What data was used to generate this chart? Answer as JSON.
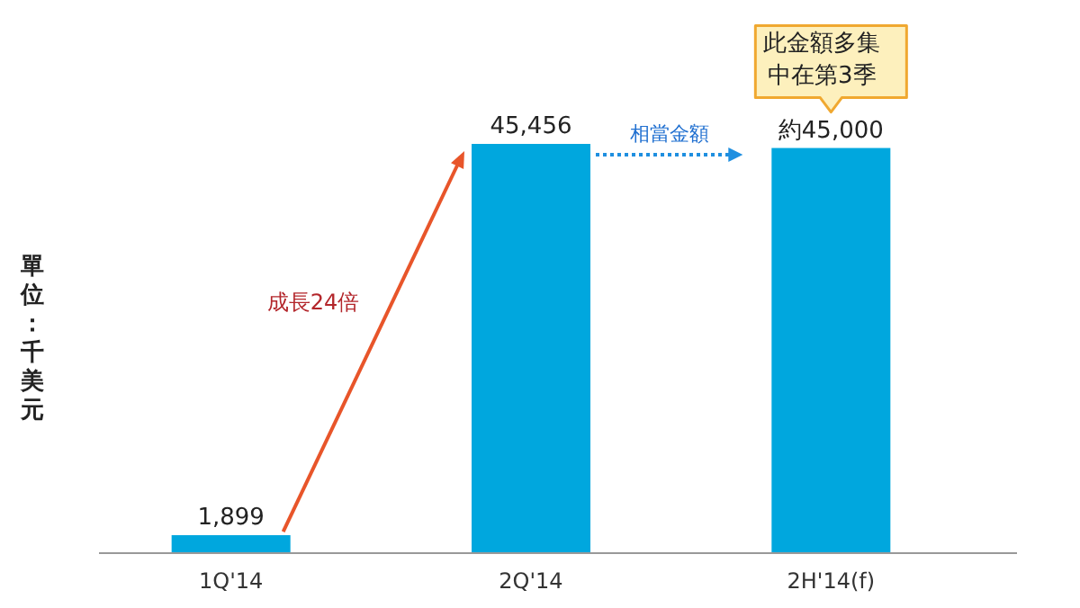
{
  "chart_data": {
    "type": "bar",
    "ylabel": "單位：千美元",
    "categories": [
      "1Q'14",
      "2Q'14",
      "2H'14(f)"
    ],
    "values": [
      1899,
      45456,
      45000
    ],
    "value_labels": [
      "1,899",
      "45,456",
      "約45,000"
    ],
    "color": "#00a7de",
    "annotations": [
      "成長24倍",
      "相當金額",
      "此金額多集中在第3季"
    ]
  }
}
